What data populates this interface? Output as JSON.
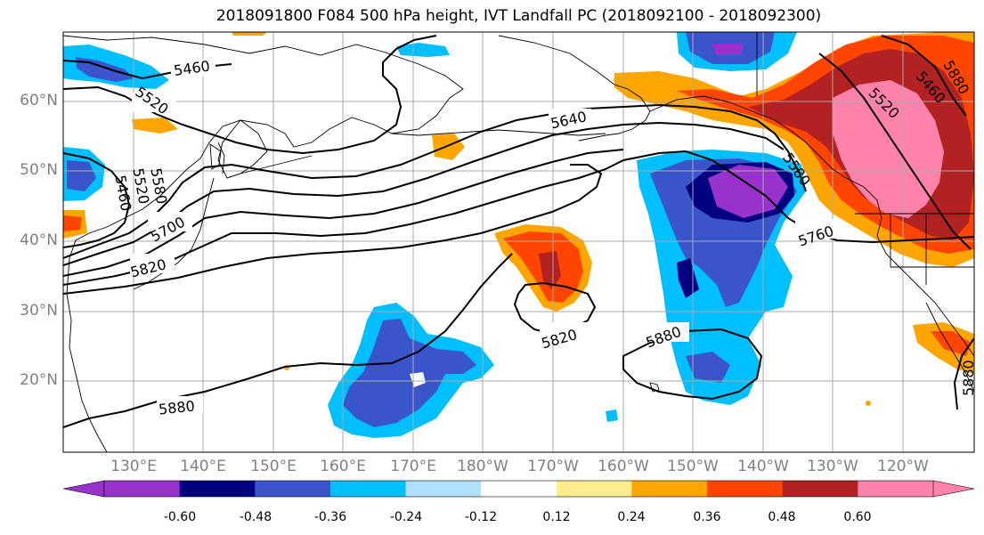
{
  "title": "2018091800 F084 500 hPa height, IVT Landfall PC (2018092100 - 2018092300)",
  "lat_labels": [
    "60°N",
    "50°N",
    "40°N",
    "30°N",
    "20°N"
  ],
  "lon_labels": [
    "130°E",
    "140°E",
    "150°E",
    "160°E",
    "170°E",
    "180°W",
    "170°W",
    "160°W",
    "150°W",
    "140°W",
    "130°W",
    "120°W"
  ],
  "contour_labels": [
    "5460",
    "5520",
    "5580",
    "5520",
    "5460",
    "5640",
    "5700",
    "5820",
    "5580",
    "5760",
    "5820",
    "5880",
    "5880",
    "5880",
    "5520",
    "5460",
    "5880"
  ],
  "colorbar": {
    "tick_labels": [
      "-0.60",
      "-0.48",
      "-0.36",
      "-0.24",
      "-0.12",
      "0.12",
      "0.24",
      "0.36",
      "0.48",
      "0.60"
    ],
    "colors": [
      "#9932CC",
      "#000080",
      "#3A55CC",
      "#00BFFF",
      "#B0E0FF",
      "#FFFFFF",
      "#FFEC8B",
      "#FFA500",
      "#FF4500",
      "#B22222",
      "#FF82AB"
    ]
  }
}
